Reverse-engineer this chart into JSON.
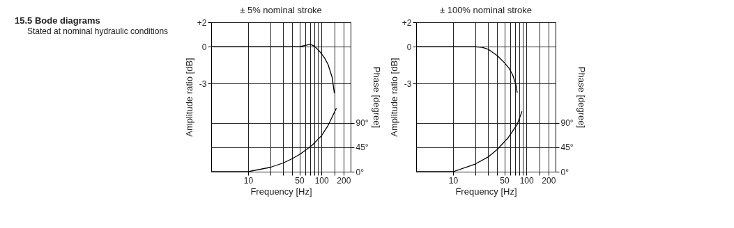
{
  "chart_data": [
    {
      "type": "line",
      "title": "± 5% nominal stroke",
      "xlabel": "Frequency [Hz]",
      "ylabel": "Amplitude ratio  [dB]",
      "y2label": "Phase [degree]",
      "annotations": [
        "15.5 Bode diagrams",
        "Stated at nominal hydraulic conditions"
      ],
      "log": "x",
      "grid": true,
      "xlim": [
        3.13,
        250
      ],
      "xticks": [
        10,
        {
          "value": 20,
          "label": null
        },
        {
          "value": 30,
          "label": null
        },
        {
          "value": 40,
          "label": null
        },
        50,
        {
          "value": 60,
          "label": null
        },
        {
          "value": 70,
          "label": null
        },
        {
          "value": 80,
          "label": null
        },
        {
          "value": 90,
          "label": null
        },
        100,
        {
          "value": 150,
          "label": null
        },
        200
      ],
      "ylim": [
        -10.2,
        2
      ],
      "yticks": [
        {
          "value": 2,
          "label": "+2"
        },
        0,
        -3
      ],
      "y2lim": [
        0,
        275
      ],
      "y2ticks": [
        {
          "value": 0,
          "label": "0°"
        },
        {
          "value": 45,
          "label": "45°"
        },
        {
          "value": 90,
          "label": "90°"
        }
      ],
      "series": [
        {
          "color": "#000000",
          "x": [
            3.13,
            40,
            50,
            60,
            70,
            80,
            95,
            110,
            123,
            140,
            150
          ],
          "values": [
            0,
            0,
            0,
            0.1,
            0.2,
            0.05,
            -0.4,
            -0.9,
            -1.45,
            -2.5,
            -3.8
          ]
        },
        {
          "color": "#000000",
          "axis": "y2",
          "x": [
            3.13,
            10,
            20,
            30,
            40,
            52,
            75,
            100,
            123,
            160
          ],
          "values": [
            0,
            0,
            8,
            16,
            24,
            33,
            49,
            66,
            85,
            117
          ]
        }
      ]
    },
    {
      "type": "line",
      "title": "± 100% nominal stroke",
      "xlabel": "Frequency [Hz]",
      "ylabel": "Amplitude ratio [dB]",
      "y2label": "Phase [degree]",
      "log": "x",
      "grid": true,
      "xlim": [
        3.13,
        250
      ],
      "xticks": [
        10,
        {
          "value": 20,
          "label": null
        },
        {
          "value": 30,
          "label": null
        },
        {
          "value": 40,
          "label": null
        },
        50,
        {
          "value": 60,
          "label": null
        },
        {
          "value": 70,
          "label": null
        },
        {
          "value": 80,
          "label": null
        },
        {
          "value": 90,
          "label": null
        },
        100,
        {
          "value": 150,
          "label": null
        },
        200
      ],
      "ylim": [
        -10.2,
        2
      ],
      "yticks": [
        {
          "value": 2,
          "label": "+2"
        },
        0,
        -3
      ],
      "y2lim": [
        0,
        275
      ],
      "y2ticks": [
        {
          "value": 0,
          "label": "0°"
        },
        {
          "value": 45,
          "label": "45°"
        },
        {
          "value": 90,
          "label": "90°"
        }
      ],
      "series": [
        {
          "color": "#000000",
          "x": [
            3.13,
            20,
            25,
            30,
            40,
            50,
            58,
            65,
            72,
            75
          ],
          "values": [
            0,
            0,
            -0.05,
            -0.2,
            -0.72,
            -1.3,
            -1.75,
            -2.3,
            -3.1,
            -3.77
          ]
        },
        {
          "color": "#000000",
          "axis": "y2",
          "x": [
            3.13,
            7.8,
            10,
            20,
            30,
            40,
            56,
            75,
            87
          ],
          "values": [
            0,
            0,
            0,
            14,
            27,
            41,
            62,
            87,
            111
          ]
        }
      ]
    }
  ]
}
